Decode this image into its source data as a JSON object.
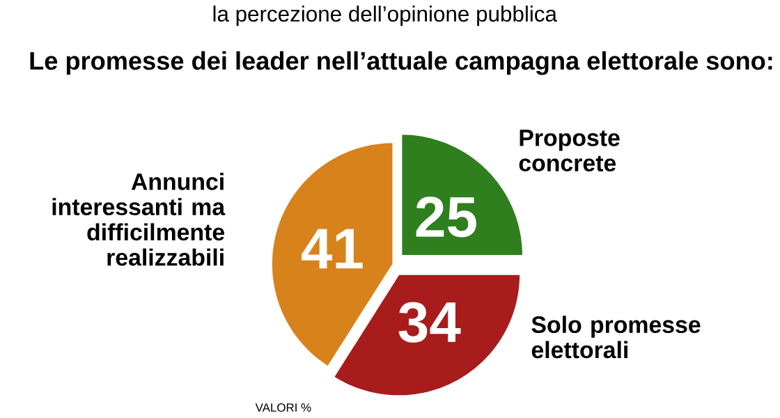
{
  "chart_data": {
    "type": "pie",
    "subtitle": "la percezione dell’opinione pubblica",
    "title": "Le promesse dei leader nell’attuale campagna elettorale sono:",
    "categories": [
      "Proposte concrete",
      "Solo promesse elettorali",
      "Annunci interessanti ma difficilmente realizzabili"
    ],
    "values": [
      25,
      34,
      41
    ],
    "colors": [
      "#2f7f1f",
      "#a81c1c",
      "#d8821c"
    ],
    "data_labels": true,
    "annotations": [
      "VALORI %"
    ]
  }
}
